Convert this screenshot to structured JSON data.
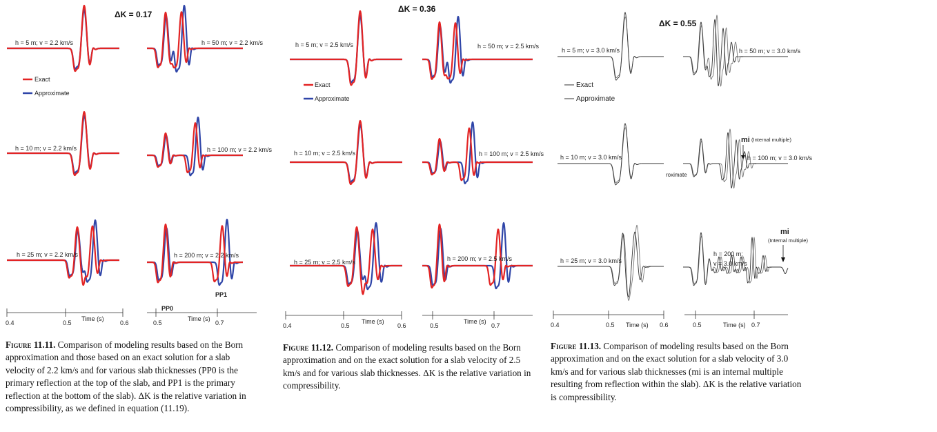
{
  "colors": {
    "exact": "#e32424",
    "approx": "#2f45a8",
    "gray": "#555555",
    "axis": "#333333"
  },
  "legend": {
    "exact": "Exact",
    "approximate": "Approximate",
    "approx_fragment": "roximate"
  },
  "figures": [
    {
      "id": "11.11",
      "delta_k": "ΔK = 0.17",
      "mode": "color",
      "panels": [
        {
          "label": "h = 5 m; v = 2.2 km/s"
        },
        {
          "label": "h = 50 m; v = 2.2 km/s"
        },
        {
          "label": "h = 10 m; v = 2.2 km/s"
        },
        {
          "label": "h = 100 m; v = 2.2 km/s"
        },
        {
          "label": "h = 25 m; v = 2.2 km/s"
        },
        {
          "label": "h = 200 m; v = 2.2 km/s"
        }
      ],
      "annotations": {
        "pp0": "PP0",
        "pp1": "PP1"
      },
      "axis_left": {
        "ticks": [
          "0.4",
          "0.5",
          "0.6"
        ],
        "label": "Time (s)"
      },
      "axis_right": {
        "ticks": [
          "0.5",
          "0.7"
        ],
        "label": "Time (s)"
      },
      "caption": {
        "fig_label": "Figure 11.11.",
        "text": "Comparison of modeling results based on the Born approximation and those based on an exact solution for a slab velocity of 2.2 km/s and for various slab thicknesses (PP0 is the primary reflection at the top of the slab, and PP1 is the primary reflection at the bottom of the slab). ΔK is the relative variation in compressibility, as we defined in equation (11.19)."
      }
    },
    {
      "id": "11.12",
      "delta_k": "ΔK = 0.36",
      "mode": "color",
      "panels": [
        {
          "label": "h = 5 m; v = 2.5 km/s"
        },
        {
          "label": "h = 50 m; v = 2.5 km/s"
        },
        {
          "label": "h = 10 m; v = 2.5 km/s"
        },
        {
          "label": "h = 100 m; v = 2.5 km/s"
        },
        {
          "label": "h = 25 m; v = 2.5 km/s"
        },
        {
          "label": "h = 200 m; v = 2.5 km/s"
        }
      ],
      "axis_left": {
        "ticks": [
          "0.4",
          "0.5",
          "0.6"
        ],
        "label": "Time (s)"
      },
      "axis_right": {
        "ticks": [
          "0.5",
          "0.7"
        ],
        "label": "Time (s)"
      },
      "caption": {
        "fig_label": "Figure 11.12.",
        "text": "Comparison of modeling results based on the Born approximation and on the exact solution for a slab velocity of 2.5 km/s and for various slab thicknesses. ΔK is the relative variation in compressibility."
      }
    },
    {
      "id": "11.13",
      "delta_k": "ΔK = 0.55",
      "mode": "gray",
      "panels": [
        {
          "label": "h = 5 m; v = 3.0 km/s"
        },
        {
          "label": "h = 50 m; v = 3.0 km/s"
        },
        {
          "label": "h = 10 m; v = 3.0 km/s"
        },
        {
          "label": "h = 100 m; v = 3.0 km/s"
        },
        {
          "label": "h = 25 m; v = 3.0 km/s"
        },
        {
          "label_line1": "h = 200 m;",
          "label_line2": "v = 3.0 km/s"
        }
      ],
      "annotations": {
        "mi": "mi",
        "internal_multiple": "(Internal multiple)"
      },
      "axis_left": {
        "ticks": [
          "0.4",
          "0.5",
          "0.6"
        ],
        "label": "Time (s)"
      },
      "axis_right": {
        "ticks": [
          "0.5",
          "0.7"
        ],
        "label": "Time (s)"
      },
      "caption": {
        "fig_label": "Figure 11.13.",
        "text": "Comparison of modeling results based on the Born approximation and on the exact solution for a slab velocity of 3.0 km/s and for various slab thicknesses (mi is an internal multiple resulting from reflection within the slab). ΔK is the relative variation is compressibility."
      }
    }
  ]
}
